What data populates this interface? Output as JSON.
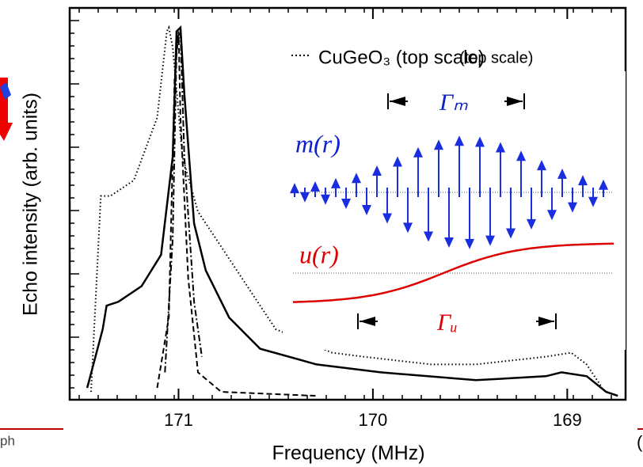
{
  "chart_data": {
    "type": "line",
    "xlabel": "Frequency  (MHz)",
    "ylabel": "Echo intensity  (arb. units)",
    "xlim": [
      171.56,
      168.7
    ],
    "xticks": [
      171,
      170,
      169
    ],
    "ylim": [
      0,
      1
    ],
    "series": [
      {
        "color": "#000",
        "dash": "solid",
        "x": [
          171.47,
          171.39,
          171.37,
          171.31,
          171.19,
          171.09,
          171.03,
          171.01,
          170.99,
          170.97,
          170.92,
          170.86,
          170.74,
          170.58,
          170.29,
          169.96,
          169.47,
          169.11,
          169.03,
          168.9,
          168.8,
          168.74
        ],
        "values": [
          0.03,
          0.18,
          0.24,
          0.25,
          0.29,
          0.37,
          0.62,
          0.94,
          0.95,
          0.78,
          0.45,
          0.33,
          0.21,
          0.13,
          0.09,
          0.07,
          0.05,
          0.06,
          0.07,
          0.06,
          0.02,
          0.01
        ]
      },
      {
        "name": "CuGeO₃ (top scale)",
        "color": "#000",
        "dash": "dotted",
        "x": [
          171.45,
          171.4,
          171.35,
          171.23,
          171.11,
          171.06,
          171.05,
          171.03,
          170.98,
          170.9,
          170.78,
          170.62,
          170.5,
          170.21,
          170.05,
          169.7,
          169.47,
          169.11,
          168.98,
          168.9,
          168.82
        ],
        "values": [
          0.02,
          0.52,
          0.52,
          0.56,
          0.72,
          0.94,
          0.95,
          0.9,
          0.62,
          0.48,
          0.39,
          0.27,
          0.18,
          0.12,
          0.11,
          0.09,
          0.09,
          0.11,
          0.12,
          0.09,
          0.03
        ]
      },
      {
        "color": "#000",
        "dash": "dashed",
        "x": [
          171.11,
          171.05,
          171.02,
          171.0,
          170.99,
          170.95,
          170.9,
          170.78,
          170.29
        ],
        "values": [
          0.03,
          0.21,
          0.82,
          0.94,
          0.72,
          0.31,
          0.07,
          0.02,
          0.01
        ]
      },
      {
        "color": "#000",
        "dash": "dashdot",
        "x": [
          171.07,
          171.03,
          171.01,
          170.99,
          170.97,
          170.92,
          170.88
        ],
        "values": [
          0.07,
          0.41,
          0.9,
          0.94,
          0.62,
          0.25,
          0.11
        ]
      }
    ]
  },
  "legend_note": "(top scale)",
  "inset": {
    "gamma_m": "Γₘ",
    "m_label": "m(r)",
    "u_label": "u(r)",
    "gamma_u": "Γᵤ"
  },
  "fragments": {
    "left": "ph",
    "right": "("
  }
}
